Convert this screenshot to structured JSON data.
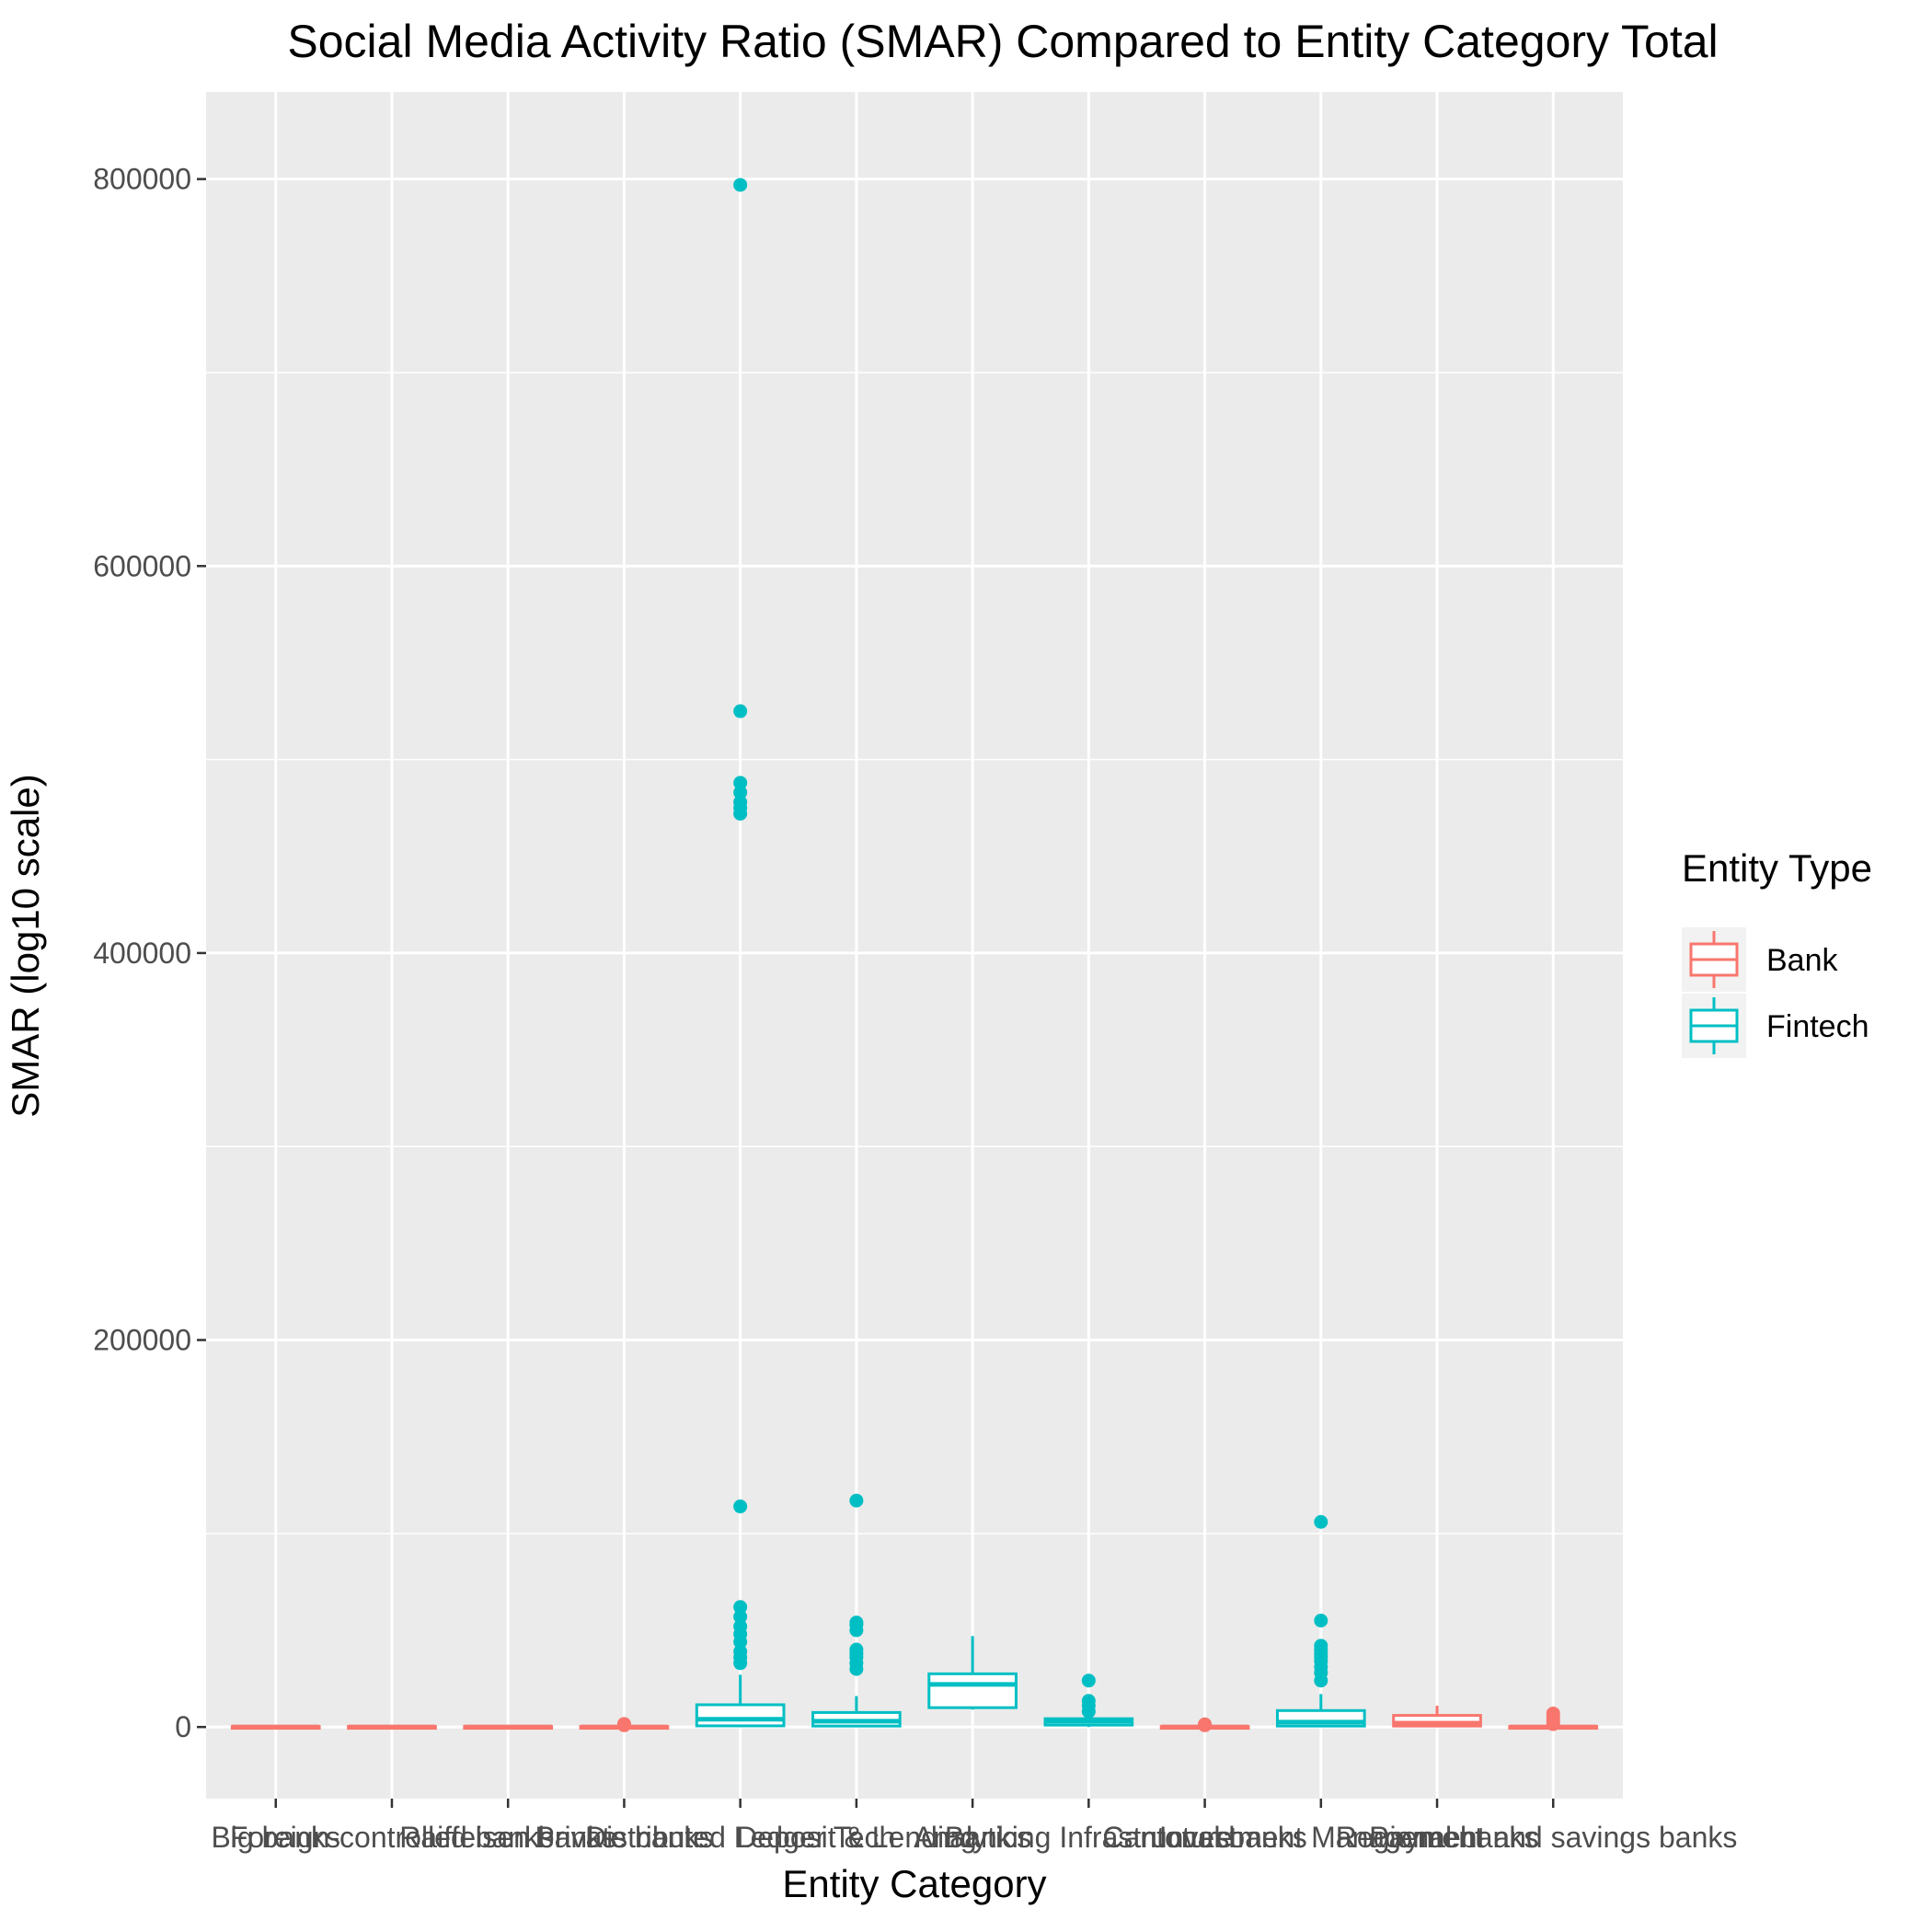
{
  "chart_data": {
    "type": "boxplot",
    "title": "Social Media Activity Ratio (SMAR) Compared to Entity Category Total",
    "xlabel": "Entity Category",
    "ylabel": "SMAR (log10 scale)",
    "ylim": [
      -37000,
      845000
    ],
    "y_ticks": [
      0,
      200000,
      400000,
      600000,
      800000
    ],
    "y_tick_labels": [
      "0",
      "200000",
      "400000",
      "600000",
      "800000"
    ],
    "grid": true,
    "legend": {
      "title": "Entity Type",
      "position": "right",
      "entries": [
        {
          "name": "Bank",
          "color": "#F8766D"
        },
        {
          "name": "Fintech",
          "color": "#00BFC4"
        }
      ]
    },
    "categories": [
      "Big banks",
      "Foreign-controlled banks",
      "Raiffeisen banks",
      "Private banks",
      "Distributed Ledger Tech & Crypto",
      "Deposit & Lending",
      "Analytics",
      "Banking Infrastructure",
      "Cantonal banks",
      "Investment Management",
      "Regional banks",
      "Payment and savings banks"
    ],
    "tick_labels_printed": [
      "Big banks",
      "Foreign-controlled banks",
      "Raiffeisen banks",
      "Private banks",
      "Distributed Ledger Tech",
      "Deposit & Lending",
      "Analytics",
      "Banking Infrastructure",
      "Cantonal banks",
      "Investment Management",
      "Regional banks",
      "Payment and savings banks"
    ],
    "boxes": [
      {
        "category": "Big banks",
        "type": "Bank",
        "min": 0,
        "q1": 0,
        "median": 0,
        "q3": 300,
        "max": 600,
        "outliers": []
      },
      {
        "category": "Foreign-controlled banks",
        "type": "Bank",
        "min": 0,
        "q1": 0,
        "median": 0,
        "q3": 300,
        "max": 600,
        "outliers": []
      },
      {
        "category": "Raiffeisen banks",
        "type": "Bank",
        "min": 0,
        "q1": 0,
        "median": 0,
        "q3": 300,
        "max": 600,
        "outliers": []
      },
      {
        "category": "Private banks",
        "type": "Bank",
        "min": 0,
        "q1": 0,
        "median": 0,
        "q3": 300,
        "max": 600,
        "outliers": [
          900,
          1600
        ]
      },
      {
        "category": "Distributed Ledger Tech & Crypto",
        "type": "Fintech",
        "min": 0,
        "q1": 600,
        "median": 4000,
        "q3": 11500,
        "max": 27000,
        "outliers": [
          33000,
          36000,
          39000,
          44000,
          48000,
          52000,
          57000,
          62000,
          114000,
          472000,
          475000,
          478000,
          483000,
          488000,
          525000,
          797000
        ]
      },
      {
        "category": "Deposit & Lending",
        "type": "Fintech",
        "min": 0,
        "q1": 500,
        "median": 3000,
        "q3": 7500,
        "max": 16000,
        "outliers": [
          30000,
          33000,
          36000,
          38000,
          40000,
          50000,
          53000,
          54000,
          117000
        ]
      },
      {
        "category": "Analytics",
        "type": "Fintech",
        "min": 9000,
        "q1": 10000,
        "median": 22000,
        "q3": 27500,
        "max": 47000,
        "outliers": []
      },
      {
        "category": "Banking Infrastructure",
        "type": "Fintech",
        "min": 0,
        "q1": 1000,
        "median": 3000,
        "q3": 4300,
        "max": 5000,
        "outliers": [
          8000,
          11000,
          13500,
          24000
        ]
      },
      {
        "category": "Cantonal banks",
        "type": "Bank",
        "min": 0,
        "q1": 0,
        "median": 0,
        "q3": 300,
        "max": 600,
        "outliers": [
          900,
          1400
        ]
      },
      {
        "category": "Investment Management",
        "type": "Fintech",
        "min": 0,
        "q1": 500,
        "median": 2500,
        "q3": 8500,
        "max": 17000,
        "outliers": [
          24000,
          28000,
          31000,
          34000,
          36000,
          38000,
          40000,
          42000,
          55000,
          106000
        ]
      },
      {
        "category": "Regional banks",
        "type": "Bank",
        "min": 0,
        "q1": 500,
        "median": 2000,
        "q3": 6000,
        "max": 11000,
        "outliers": []
      },
      {
        "category": "Payment and savings banks",
        "type": "Bank",
        "min": 0,
        "q1": 0,
        "median": 0,
        "q3": 300,
        "max": 700,
        "outliers": [
          1500,
          3000,
          5000,
          7000
        ]
      }
    ]
  }
}
